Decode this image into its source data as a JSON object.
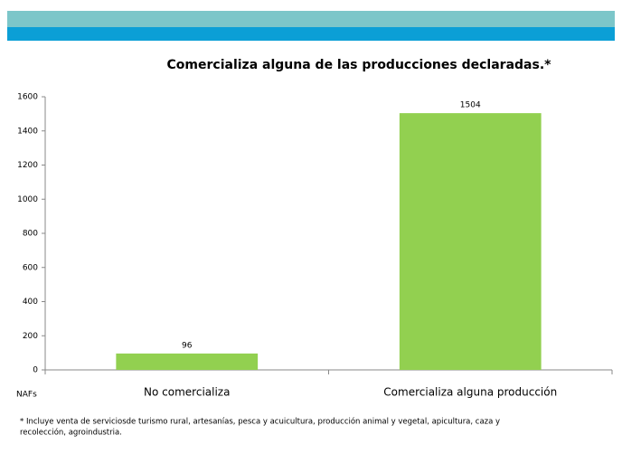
{
  "chart_data": {
    "type": "bar",
    "title": "Comercializa alguna de las producciones declaradas.*",
    "y_label": "NAFs",
    "categories": [
      "No comercializa",
      "Comercializa alguna producción"
    ],
    "values": [
      96,
      1504
    ],
    "color": "#92d050",
    "ylim": [
      0,
      1600
    ],
    "yticks": [
      0,
      200,
      400,
      600,
      800,
      1000,
      1200,
      1400,
      1600
    ],
    "grid": false,
    "footnote": [
      "* Incluye venta de serviciosde turismo rural, artesanías, pesca y acuicultura, producción animal y vegetal, apicultura, caza y",
      "recolección, agroindustria."
    ]
  }
}
